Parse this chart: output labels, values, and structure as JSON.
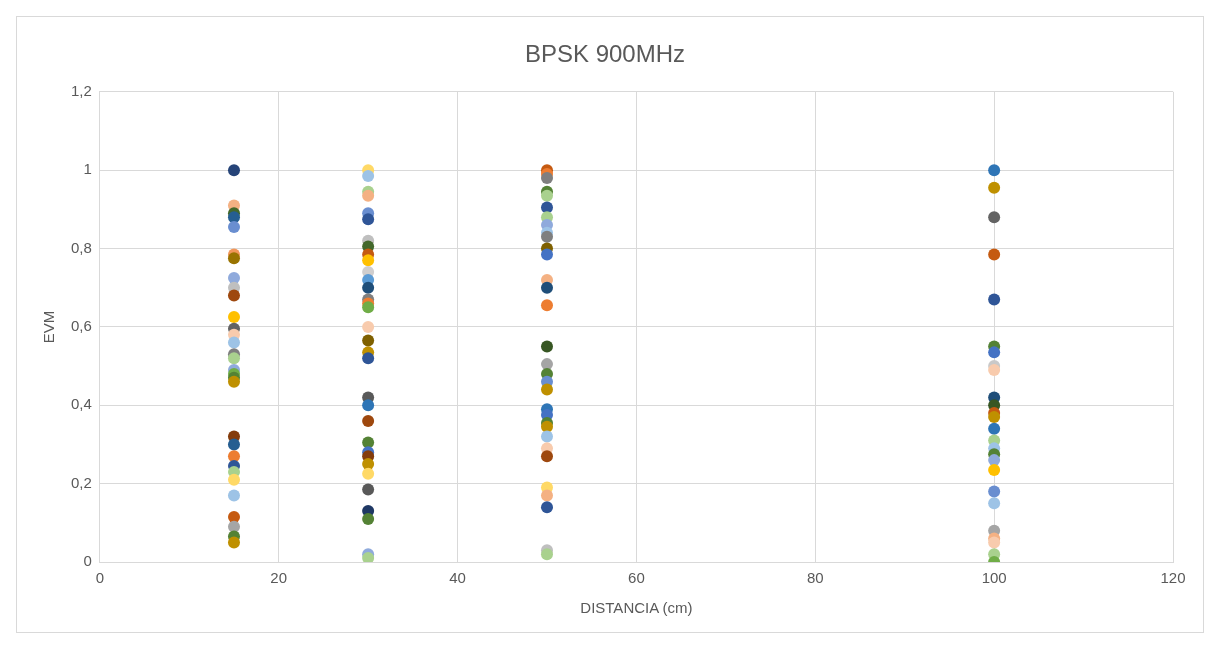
{
  "chart_data": {
    "type": "scatter",
    "title": "BPSK 900MHz",
    "xlabel": "DISTANCIA (cm)",
    "ylabel": "EVM",
    "x": [
      15,
      15,
      15,
      15,
      15,
      15,
      15,
      15,
      15,
      15,
      15,
      15,
      15,
      15,
      15,
      15,
      15,
      15,
      15,
      15,
      15,
      15,
      15,
      15,
      15,
      15,
      15,
      15,
      15,
      15,
      15,
      30,
      30,
      30,
      30,
      30,
      30,
      30,
      30,
      30,
      30,
      30,
      30,
      30,
      30,
      30,
      30,
      30,
      30,
      30,
      30,
      30,
      30,
      30,
      30,
      30,
      30,
      30,
      30,
      30,
      30,
      30,
      30,
      30,
      50,
      50,
      50,
      50,
      50,
      50,
      50,
      50,
      50,
      50,
      50,
      50,
      50,
      50,
      50,
      50,
      50,
      50,
      50,
      50,
      50,
      50,
      50,
      50,
      50,
      50,
      50,
      50,
      50,
      50,
      50,
      50,
      100,
      100,
      100,
      100,
      100,
      100,
      100,
      100,
      100,
      100,
      100,
      100,
      100,
      100,
      100,
      100,
      100,
      100,
      100,
      100,
      100,
      100,
      100,
      100,
      100,
      100
    ],
    "values": [
      1.0,
      0.91,
      0.89,
      0.88,
      0.855,
      0.785,
      0.775,
      0.725,
      0.7,
      0.68,
      0.625,
      0.595,
      0.58,
      0.56,
      0.53,
      0.52,
      0.49,
      0.48,
      0.47,
      0.46,
      0.32,
      0.3,
      0.27,
      0.245,
      0.23,
      0.21,
      0.17,
      0.115,
      0.09,
      0.065,
      0.05,
      1.0,
      0.985,
      0.945,
      0.935,
      0.89,
      0.875,
      0.82,
      0.805,
      0.785,
      0.77,
      0.74,
      0.72,
      0.7,
      0.67,
      0.66,
      0.65,
      0.6,
      0.565,
      0.535,
      0.52,
      0.42,
      0.4,
      0.36,
      0.305,
      0.28,
      0.27,
      0.25,
      0.225,
      0.185,
      0.13,
      0.11,
      0.02,
      0.01,
      1.0,
      0.99,
      0.98,
      0.945,
      0.935,
      0.905,
      0.88,
      0.86,
      0.84,
      0.83,
      0.8,
      0.785,
      0.72,
      0.7,
      0.655,
      0.55,
      0.505,
      0.48,
      0.46,
      0.44,
      0.39,
      0.375,
      0.355,
      0.345,
      0.32,
      0.29,
      0.27,
      0.19,
      0.17,
      0.14,
      0.03,
      0.02,
      1.0,
      0.955,
      0.88,
      0.785,
      0.67,
      0.55,
      0.535,
      0.5,
      0.49,
      0.42,
      0.4,
      0.38,
      0.37,
      0.34,
      0.31,
      0.29,
      0.275,
      0.26,
      0.235,
      0.18,
      0.15,
      0.08,
      0.06,
      0.05,
      0.02,
      0.0
    ],
    "colors": [
      "#264478",
      "#f4b183",
      "#43682b",
      "#255e91",
      "#698ed0",
      "#f1975a",
      "#997300",
      "#8faadc",
      "#bfbfbf",
      "#9e480e",
      "#ffc000",
      "#636363",
      "#f8cbad",
      "#9dc3e6",
      "#7f7f7f",
      "#a9d18e",
      "#8faadc",
      "#70ad47",
      "#548235",
      "#bf9000",
      "#843c0c",
      "#255e91",
      "#ed7d31",
      "#2f5597",
      "#a9d18e",
      "#ffd966",
      "#9dc3e6",
      "#c55a11",
      "#a5a5a5",
      "#548235",
      "#bf9000",
      "#ffd966",
      "#9dc3e6",
      "#a9d18e",
      "#f4b183",
      "#698ed0",
      "#2f5597",
      "#bfbfbf",
      "#43682b",
      "#c55a11",
      "#ffc000",
      "#d0cece",
      "#5b9bd5",
      "#1f4e79",
      "#7f7f7f",
      "#ed7d31",
      "#70ad47",
      "#f8cbad",
      "#7f6000",
      "#bf9000",
      "#2f5597",
      "#595959",
      "#2e75b6",
      "#9e480e",
      "#548235",
      "#4472c4",
      "#843c0c",
      "#bf9000",
      "#ffd966",
      "#595959",
      "#1f3864",
      "#548235",
      "#8faadc",
      "#a9d18e",
      "#c55a11",
      "#ed7d31",
      "#7f7f7f",
      "#548235",
      "#a9d18e",
      "#2f5597",
      "#a9d18e",
      "#8faadc",
      "#9dc3e6",
      "#7f7f7f",
      "#7f6000",
      "#4472c4",
      "#f4b183",
      "#1f4e79",
      "#ed7d31",
      "#375623",
      "#a5a5a5",
      "#548235",
      "#698ed0",
      "#bf9000",
      "#2e75b6",
      "#4472c4",
      "#548235",
      "#bf9000",
      "#9dc3e6",
      "#f8cbad",
      "#9e480e",
      "#ffd966",
      "#f4b183",
      "#2f5597",
      "#bfbfbf",
      "#a9d18e",
      "#2e75b6",
      "#bf9000",
      "#636363",
      "#c55a11",
      "#2f5597",
      "#548235",
      "#4472c4",
      "#c9c9c9",
      "#f8cbad",
      "#1f4e79",
      "#375623",
      "#c55a11",
      "#bf9000",
      "#2e75b6",
      "#a9d18e",
      "#9dc3e6",
      "#548235",
      "#8faadc",
      "#ffc000",
      "#698ed0",
      "#9dc3e6",
      "#a5a5a5",
      "#f4b183",
      "#f8cbad",
      "#a9d18e",
      "#70ad47"
    ],
    "xlim": [
      0,
      120
    ],
    "xticks": [
      0,
      20,
      40,
      60,
      80,
      100,
      120
    ],
    "ylim": [
      0,
      1.2
    ],
    "yticks": [
      0,
      {
        "value": 0.2,
        "label": "0,2"
      },
      {
        "value": 0.4,
        "label": "0,4"
      },
      {
        "value": 0.6,
        "label": "0,6"
      },
      {
        "value": 0.8,
        "label": "0,8"
      },
      1,
      {
        "value": 1.2,
        "label": "1,2"
      }
    ],
    "grid": true,
    "marker": "circle"
  }
}
